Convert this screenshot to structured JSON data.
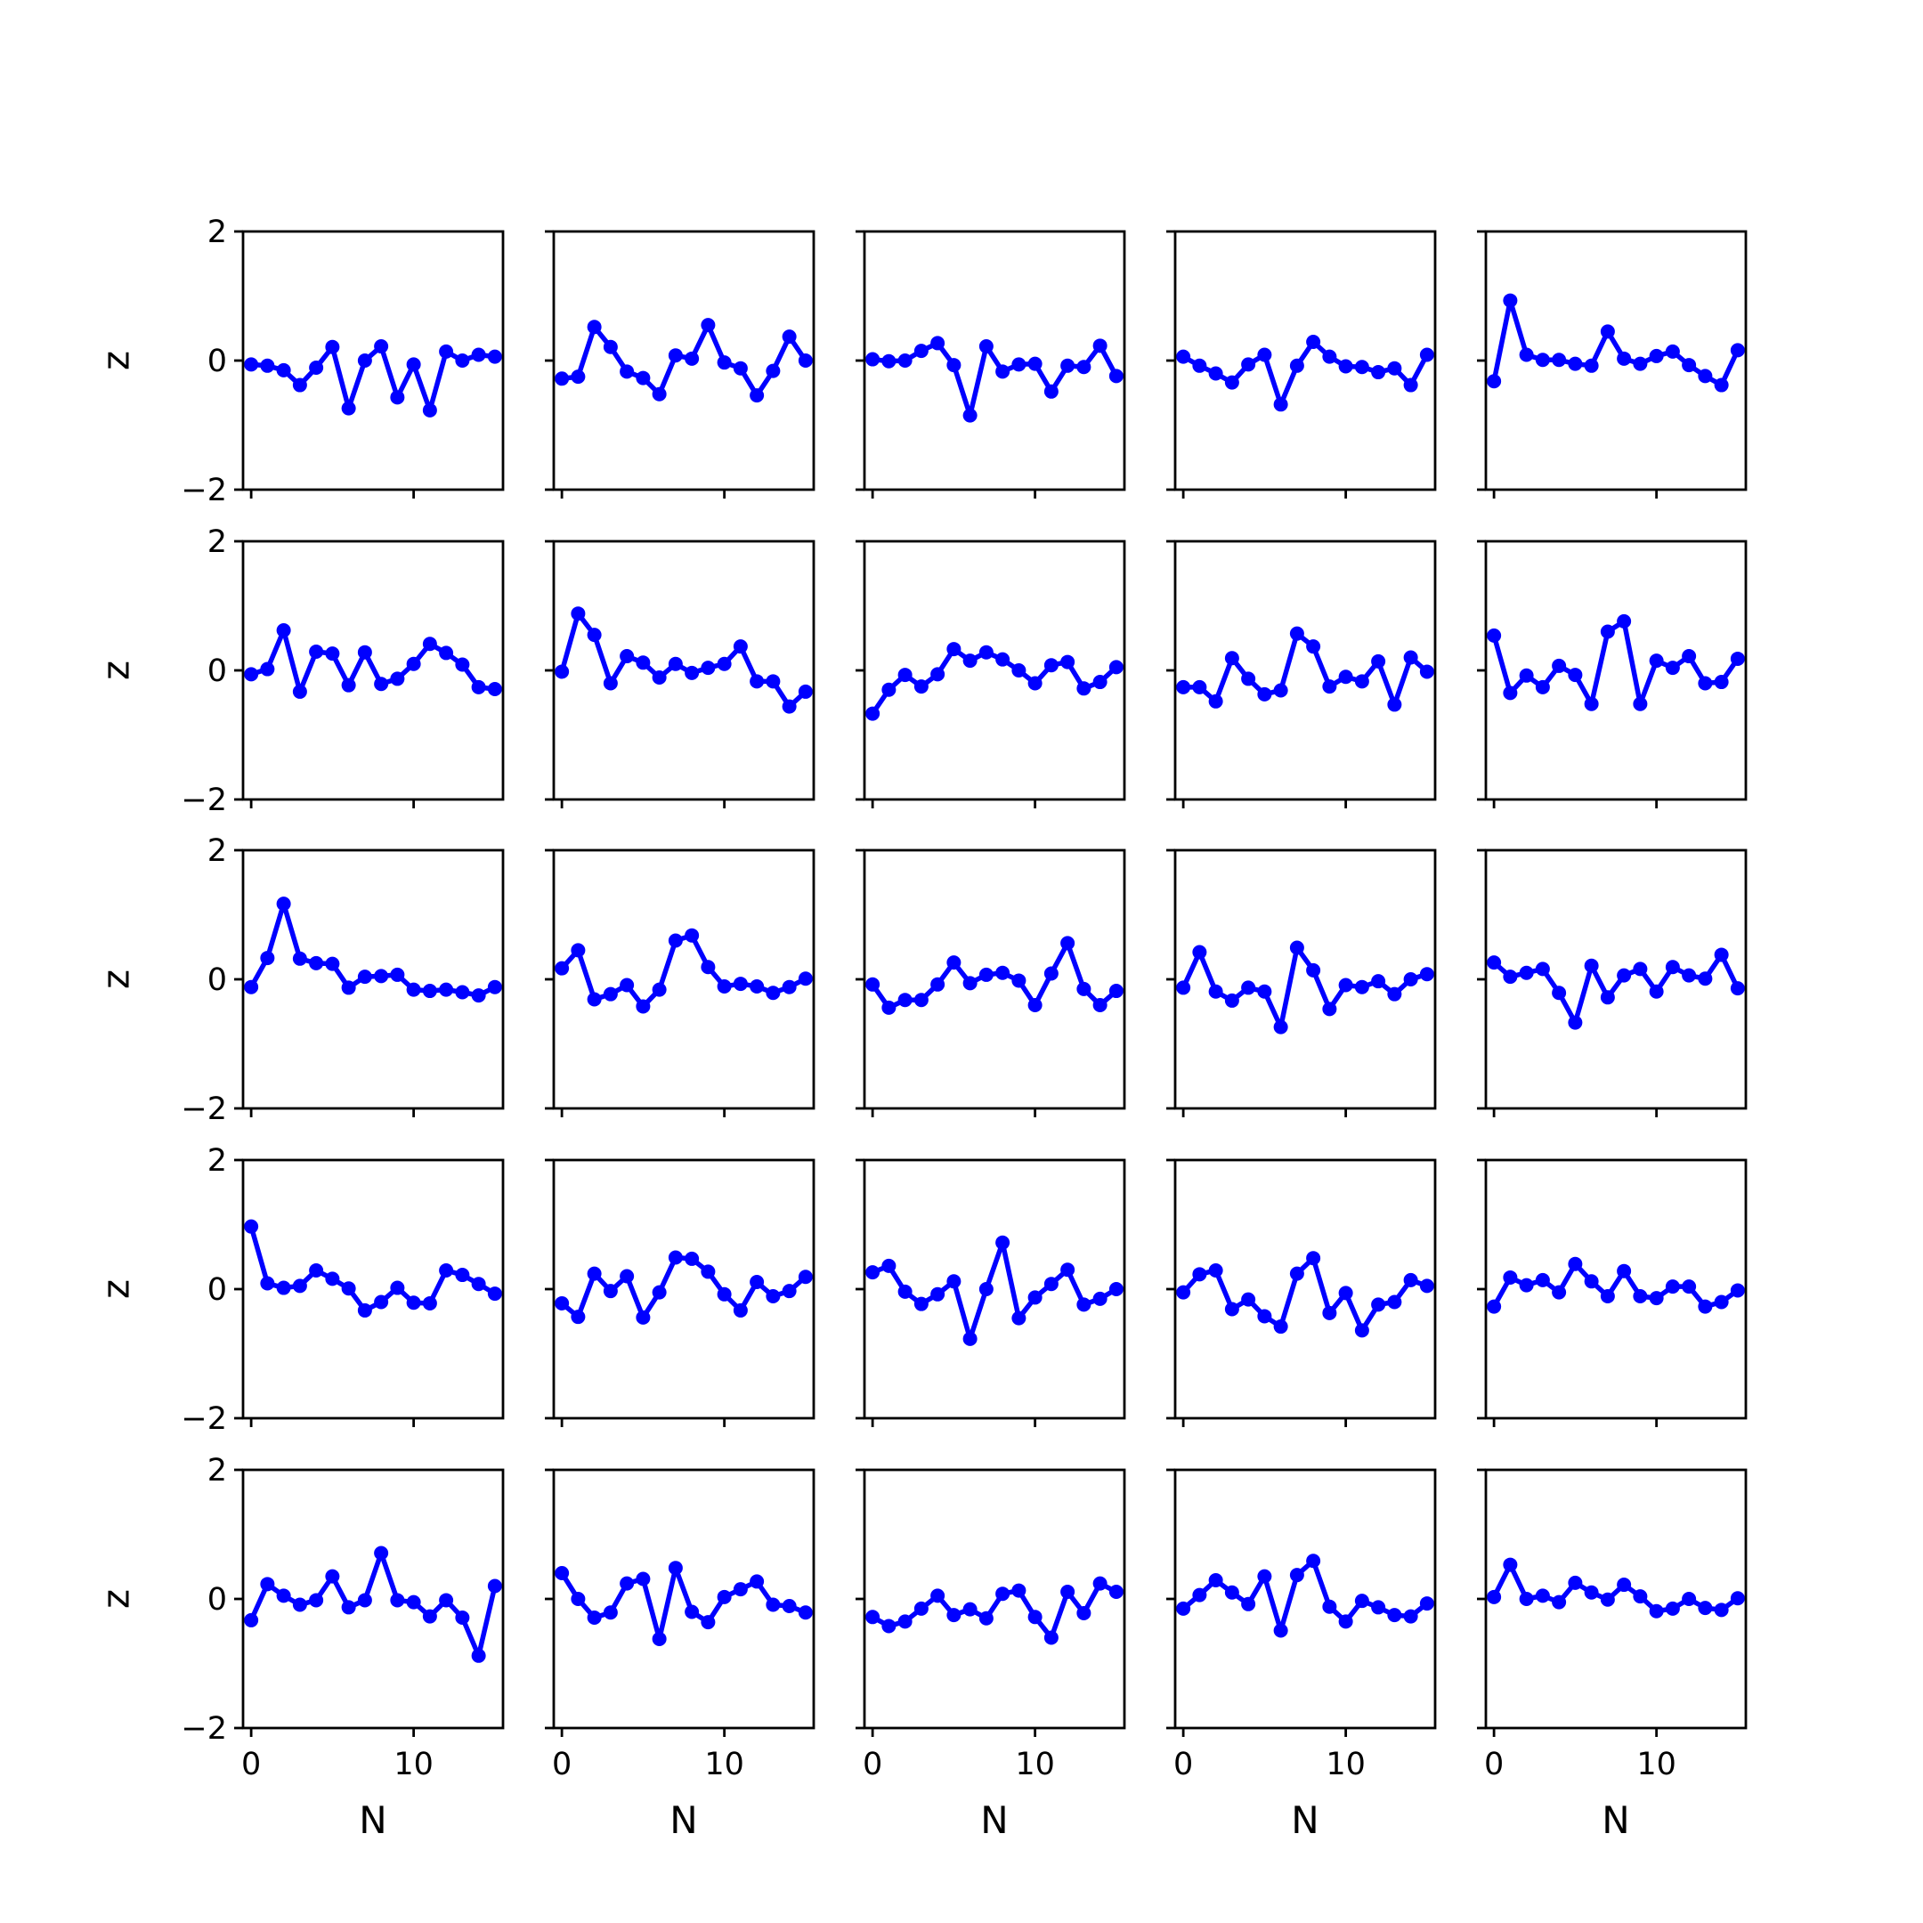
{
  "chart_data": {
    "type": "line",
    "layout": {
      "rows": 5,
      "cols": 5,
      "sharex": true,
      "sharey": true
    },
    "series_color": "#0000ff",
    "x": [
      0,
      1,
      2,
      3,
      4,
      5,
      6,
      7,
      8,
      9,
      10,
      11,
      12,
      13,
      14,
      15
    ],
    "xlim": [
      -0.5,
      15.5
    ],
    "ylim": [
      -2,
      2
    ],
    "x_ticks": [
      0,
      10
    ],
    "x_tick_labels": [
      "0",
      "10"
    ],
    "y_ticks": [
      -2,
      0,
      2
    ],
    "y_tick_labels": [
      "−2",
      "0",
      "2"
    ],
    "xlabel": "N",
    "ylabel": "z",
    "grid": false,
    "legend": "none",
    "panels": [
      {
        "row": 0,
        "col": 0,
        "y": [
          -0.06,
          -0.08,
          -0.15,
          -0.38,
          -0.11,
          0.21,
          -0.74,
          0.0,
          0.22,
          -0.57,
          -0.06,
          -0.77,
          0.14,
          0.0,
          0.09,
          0.06
        ]
      },
      {
        "row": 0,
        "col": 1,
        "y": [
          -0.28,
          -0.25,
          0.52,
          0.21,
          -0.17,
          -0.27,
          -0.52,
          0.08,
          0.03,
          0.55,
          -0.03,
          -0.12,
          -0.54,
          -0.16,
          0.37,
          0.0
        ]
      },
      {
        "row": 0,
        "col": 2,
        "y": [
          0.02,
          -0.01,
          0.0,
          0.15,
          0.27,
          -0.07,
          -0.85,
          0.22,
          -0.17,
          -0.06,
          -0.05,
          -0.48,
          -0.08,
          -0.1,
          0.23,
          -0.24
        ]
      },
      {
        "row": 0,
        "col": 3,
        "y": [
          0.06,
          -0.08,
          -0.2,
          -0.34,
          -0.06,
          0.09,
          -0.68,
          -0.08,
          0.29,
          0.06,
          -0.09,
          -0.1,
          -0.18,
          -0.12,
          -0.38,
          0.09
        ]
      },
      {
        "row": 0,
        "col": 4,
        "y": [
          -0.32,
          0.93,
          0.09,
          0.01,
          0.01,
          -0.05,
          -0.08,
          0.45,
          0.03,
          -0.05,
          0.07,
          0.14,
          -0.07,
          -0.24,
          -0.38,
          0.16
        ]
      },
      {
        "row": 1,
        "col": 0,
        "y": [
          -0.06,
          0.02,
          0.62,
          -0.33,
          0.29,
          0.26,
          -0.23,
          0.28,
          -0.21,
          -0.13,
          0.1,
          0.41,
          0.27,
          0.09,
          -0.26,
          -0.29
        ]
      },
      {
        "row": 1,
        "col": 1,
        "y": [
          -0.02,
          0.88,
          0.55,
          -0.2,
          0.22,
          0.12,
          -0.11,
          0.1,
          -0.04,
          0.04,
          0.1,
          0.37,
          -0.17,
          -0.17,
          -0.56,
          -0.33
        ]
      },
      {
        "row": 1,
        "col": 2,
        "y": [
          -0.67,
          -0.3,
          -0.07,
          -0.25,
          -0.06,
          0.33,
          0.15,
          0.28,
          0.17,
          0.0,
          -0.2,
          0.08,
          0.13,
          -0.28,
          -0.18,
          0.05
        ]
      },
      {
        "row": 1,
        "col": 3,
        "y": [
          -0.26,
          -0.26,
          -0.48,
          0.19,
          -0.13,
          -0.37,
          -0.31,
          0.57,
          0.37,
          -0.25,
          -0.1,
          -0.17,
          0.14,
          -0.53,
          0.2,
          -0.02
        ]
      },
      {
        "row": 1,
        "col": 4,
        "y": [
          0.54,
          -0.35,
          -0.08,
          -0.26,
          0.07,
          -0.07,
          -0.52,
          0.6,
          0.76,
          -0.52,
          0.15,
          0.04,
          0.22,
          -0.2,
          -0.18,
          0.18
        ]
      },
      {
        "row": 2,
        "col": 0,
        "y": [
          -0.12,
          0.33,
          1.17,
          0.32,
          0.25,
          0.24,
          -0.13,
          0.04,
          0.05,
          0.07,
          -0.16,
          -0.18,
          -0.16,
          -0.2,
          -0.25,
          -0.12
        ]
      },
      {
        "row": 2,
        "col": 1,
        "y": [
          0.17,
          0.45,
          -0.31,
          -0.23,
          -0.09,
          -0.42,
          -0.16,
          0.6,
          0.68,
          0.19,
          -0.11,
          -0.07,
          -0.11,
          -0.21,
          -0.12,
          0.01
        ]
      },
      {
        "row": 2,
        "col": 2,
        "y": [
          -0.08,
          -0.44,
          -0.32,
          -0.32,
          -0.08,
          0.26,
          -0.06,
          0.07,
          0.1,
          -0.02,
          -0.4,
          0.09,
          0.56,
          -0.15,
          -0.4,
          -0.18
        ]
      },
      {
        "row": 2,
        "col": 3,
        "y": [
          -0.13,
          0.42,
          -0.19,
          -0.33,
          -0.13,
          -0.19,
          -0.74,
          0.49,
          0.14,
          -0.46,
          -0.09,
          -0.12,
          -0.03,
          -0.23,
          0.0,
          0.08
        ]
      },
      {
        "row": 2,
        "col": 4,
        "y": [
          0.26,
          0.04,
          0.1,
          0.16,
          -0.21,
          -0.67,
          0.21,
          -0.28,
          0.06,
          0.16,
          -0.19,
          0.19,
          0.06,
          0.01,
          0.38,
          -0.14
        ]
      },
      {
        "row": 3,
        "col": 0,
        "y": [
          0.97,
          0.09,
          0.02,
          0.05,
          0.29,
          0.16,
          0.01,
          -0.33,
          -0.2,
          0.02,
          -0.21,
          -0.22,
          0.29,
          0.22,
          0.08,
          -0.07
        ]
      },
      {
        "row": 3,
        "col": 1,
        "y": [
          -0.22,
          -0.43,
          0.24,
          -0.03,
          0.2,
          -0.44,
          -0.05,
          0.49,
          0.47,
          0.27,
          -0.08,
          -0.33,
          0.11,
          -0.11,
          -0.03,
          0.19
        ]
      },
      {
        "row": 3,
        "col": 2,
        "y": [
          0.26,
          0.36,
          -0.04,
          -0.23,
          -0.08,
          0.12,
          -0.77,
          0.0,
          0.72,
          -0.45,
          -0.13,
          0.08,
          0.3,
          -0.24,
          -0.15,
          0.0
        ]
      },
      {
        "row": 3,
        "col": 3,
        "y": [
          -0.05,
          0.23,
          0.29,
          -0.31,
          -0.16,
          -0.42,
          -0.58,
          0.24,
          0.48,
          -0.37,
          -0.06,
          -0.64,
          -0.24,
          -0.2,
          0.14,
          0.05
        ]
      },
      {
        "row": 3,
        "col": 4,
        "y": [
          -0.27,
          0.18,
          0.06,
          0.14,
          -0.05,
          0.39,
          0.12,
          -0.11,
          0.28,
          -0.11,
          -0.14,
          0.04,
          0.04,
          -0.27,
          -0.2,
          -0.02
        ]
      },
      {
        "row": 4,
        "col": 0,
        "y": [
          -0.33,
          0.23,
          0.05,
          -0.09,
          -0.02,
          0.35,
          -0.13,
          -0.02,
          0.71,
          -0.02,
          -0.05,
          -0.27,
          -0.02,
          -0.29,
          -0.88,
          0.2
        ]
      },
      {
        "row": 4,
        "col": 1,
        "y": [
          0.4,
          0.0,
          -0.29,
          -0.21,
          0.24,
          0.31,
          -0.62,
          0.48,
          -0.2,
          -0.36,
          0.03,
          0.15,
          0.27,
          -0.09,
          -0.11,
          -0.21
        ]
      },
      {
        "row": 4,
        "col": 2,
        "y": [
          -0.28,
          -0.42,
          -0.35,
          -0.15,
          0.05,
          -0.25,
          -0.16,
          -0.3,
          0.08,
          0.13,
          -0.28,
          -0.6,
          0.11,
          -0.22,
          0.24,
          0.11
        ]
      },
      {
        "row": 4,
        "col": 3,
        "y": [
          -0.15,
          0.06,
          0.29,
          0.1,
          -0.08,
          0.35,
          -0.49,
          0.37,
          0.59,
          -0.12,
          -0.35,
          -0.03,
          -0.13,
          -0.25,
          -0.27,
          -0.07
        ]
      },
      {
        "row": 4,
        "col": 4,
        "y": [
          0.03,
          0.53,
          0.0,
          0.05,
          -0.05,
          0.25,
          0.1,
          -0.01,
          0.22,
          0.04,
          -0.19,
          -0.15,
          0.0,
          -0.14,
          -0.17,
          0.01
        ]
      }
    ]
  }
}
